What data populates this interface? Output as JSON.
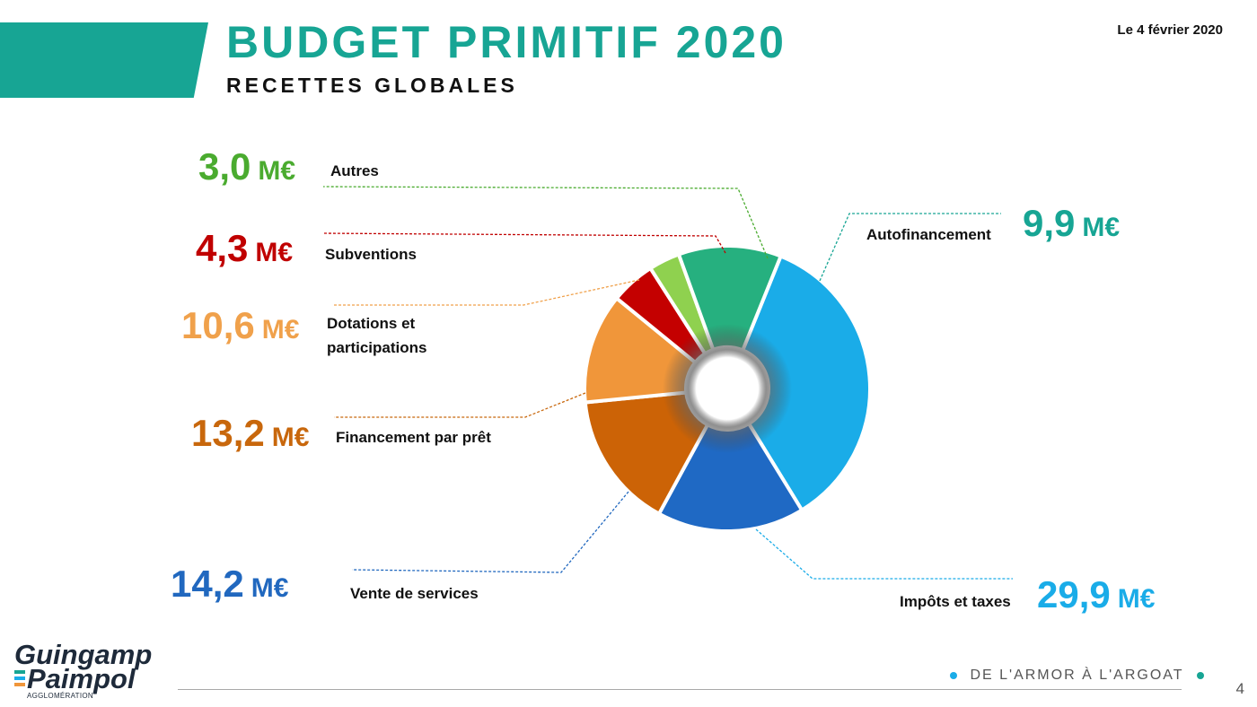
{
  "header": {
    "title": "BUDGET PRIMITIF 2020",
    "subtitle": "RECETTES GLOBALES",
    "date": "Le 4 février 2020"
  },
  "chart_data": {
    "type": "pie",
    "variant": "donut",
    "unit": "M€",
    "slices": [
      {
        "label": "Impôts et taxes",
        "value_text": "29,9",
        "value": 29.9,
        "color": "#1aace8"
      },
      {
        "label": "Vente de services",
        "value_text": "14,2",
        "value": 14.2,
        "color": "#1f69c4"
      },
      {
        "label": "Financement par prêt",
        "value_text": "13,2",
        "value": 13.2,
        "color": "#cc6306"
      },
      {
        "label": "Dotations et participations",
        "label_lines": [
          "Dotations et",
          "participations"
        ],
        "value_text": "10,6",
        "value": 10.6,
        "color": "#f0963a"
      },
      {
        "label": "Subventions",
        "value_text": "4,3",
        "value": 4.3,
        "color": "#c40000"
      },
      {
        "label": "Autres",
        "value_text": "3,0",
        "value": 3.0,
        "color": "#8fd14f"
      },
      {
        "label": "Autofinancement",
        "value_text": "9,9",
        "value": 9.9,
        "color": "#26b07f"
      }
    ],
    "value_colors": {
      "Impôts et taxes": "#1aace8",
      "Vente de services": "#2168bf",
      "Financement par prêt": "#c8670c",
      "Dotations et participations": "#f0a14b",
      "Subventions": "#c00000",
      "Autres": "#4aab2f",
      "Autofinancement": "#17a594"
    }
  },
  "footer": {
    "logo_line1": "Guingamp",
    "logo_line2": "Paimpol",
    "logo_line3": "AGGLOMÉRATION",
    "slogan": "DE L'ARMOR À L'ARGOAT",
    "slogan_dot_left": "#1aace8",
    "slogan_dot_right": "#17a594",
    "page_number": "4"
  }
}
